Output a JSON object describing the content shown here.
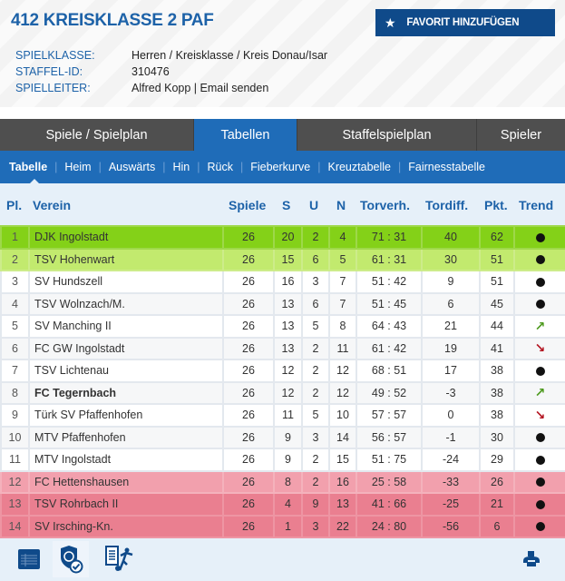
{
  "header": {
    "title": "412 KREISKLASSE 2 PAF",
    "favorite_button": "FAVORIT HINZUFÜGEN",
    "info": [
      {
        "label": "SPIELKLASSE:",
        "value": "Herren / Kreisklasse / Kreis Donau/Isar"
      },
      {
        "label": "STAFFEL-ID:",
        "value": "310476"
      },
      {
        "label": "SPIELLEITER:",
        "value": "Alfred Kopp",
        "link": "Email senden"
      }
    ]
  },
  "main_tabs": [
    {
      "label": "Spiele / Spielplan",
      "active": false
    },
    {
      "label": "Tabellen",
      "active": true
    },
    {
      "label": "Staffelspielplan",
      "active": false
    },
    {
      "label": "Spieler",
      "active": false
    }
  ],
  "sub_tabs": [
    {
      "label": "Tabelle",
      "active": true
    },
    {
      "label": "Heim"
    },
    {
      "label": "Auswärts"
    },
    {
      "label": "Hin"
    },
    {
      "label": "Rück"
    },
    {
      "label": "Fieberkurve"
    },
    {
      "label": "Kreuztabelle"
    },
    {
      "label": "Fairnesstabelle"
    }
  ],
  "table": {
    "columns": [
      "Pl.",
      "Verein",
      "Spiele",
      "S",
      "U",
      "N",
      "Torverh.",
      "Tordiff.",
      "Pkt.",
      "Trend"
    ],
    "rows": [
      {
        "pl": "1",
        "team": "DJK Ingolstadt",
        "spiele": "26",
        "s": "20",
        "u": "2",
        "n": "4",
        "tore": "71 : 31",
        "diff": "40",
        "pkt": "62",
        "trend": "same",
        "style": "promo1"
      },
      {
        "pl": "2",
        "team": "TSV Hohenwart",
        "spiele": "26",
        "s": "15",
        "u": "6",
        "n": "5",
        "tore": "61 : 31",
        "diff": "30",
        "pkt": "51",
        "trend": "same",
        "style": "promo2"
      },
      {
        "pl": "3",
        "team": "SV Hundszell",
        "spiele": "26",
        "s": "16",
        "u": "3",
        "n": "7",
        "tore": "51 : 42",
        "diff": "9",
        "pkt": "51",
        "trend": "same",
        "style": "white"
      },
      {
        "pl": "4",
        "team": "TSV Wolnzach/M.",
        "spiele": "26",
        "s": "13",
        "u": "6",
        "n": "7",
        "tore": "51 : 45",
        "diff": "6",
        "pkt": "45",
        "trend": "same",
        "style": "gray"
      },
      {
        "pl": "5",
        "team": "SV Manching II",
        "spiele": "26",
        "s": "13",
        "u": "5",
        "n": "8",
        "tore": "64 : 43",
        "diff": "21",
        "pkt": "44",
        "trend": "up",
        "style": "white"
      },
      {
        "pl": "6",
        "team": "FC GW Ingolstadt",
        "spiele": "26",
        "s": "13",
        "u": "2",
        "n": "11",
        "tore": "61 : 42",
        "diff": "19",
        "pkt": "41",
        "trend": "down",
        "style": "gray"
      },
      {
        "pl": "7",
        "team": "TSV Lichtenau",
        "spiele": "26",
        "s": "12",
        "u": "2",
        "n": "12",
        "tore": "68 : 51",
        "diff": "17",
        "pkt": "38",
        "trend": "same",
        "style": "white"
      },
      {
        "pl": "8",
        "team": "FC Tegernbach",
        "spiele": "26",
        "s": "12",
        "u": "2",
        "n": "12",
        "tore": "49 : 52",
        "diff": "-3",
        "pkt": "38",
        "trend": "up",
        "style": "gray",
        "bold": true
      },
      {
        "pl": "9",
        "team": "Türk SV Pfaffenhofen",
        "spiele": "26",
        "s": "11",
        "u": "5",
        "n": "10",
        "tore": "57 : 57",
        "diff": "0",
        "pkt": "38",
        "trend": "down",
        "style": "white"
      },
      {
        "pl": "10",
        "team": "MTV Pfaffenhofen",
        "spiele": "26",
        "s": "9",
        "u": "3",
        "n": "14",
        "tore": "56 : 57",
        "diff": "-1",
        "pkt": "30",
        "trend": "same",
        "style": "gray"
      },
      {
        "pl": "11",
        "team": "MTV Ingolstadt",
        "spiele": "26",
        "s": "9",
        "u": "2",
        "n": "15",
        "tore": "51 : 75",
        "diff": "-24",
        "pkt": "29",
        "trend": "same",
        "style": "white"
      },
      {
        "pl": "12",
        "team": "FC Hettenshausen",
        "spiele": "26",
        "s": "8",
        "u": "2",
        "n": "16",
        "tore": "25 : 58",
        "diff": "-33",
        "pkt": "26",
        "trend": "same",
        "style": "rel1"
      },
      {
        "pl": "13",
        "team": "TSV Rohrbach II",
        "spiele": "26",
        "s": "4",
        "u": "9",
        "n": "13",
        "tore": "41 : 66",
        "diff": "-25",
        "pkt": "21",
        "trend": "same",
        "style": "rel2"
      },
      {
        "pl": "14",
        "team": "SV Irsching-Kn.",
        "spiele": "26",
        "s": "1",
        "u": "3",
        "n": "22",
        "tore": "24 : 80",
        "diff": "-56",
        "pkt": "6",
        "trend": "same",
        "style": "rel2"
      }
    ]
  },
  "footer_icons": [
    "table-view-icon",
    "shield-check-icon",
    "report-player-icon",
    "print-icon"
  ],
  "colors": {
    "accent": "#1f6cb8",
    "title": "#1d62a8",
    "dark_tab": "#4f4f4f",
    "fav_button": "#0f4a8a",
    "promo1": "#84d118",
    "promo2": "#c2ea6e",
    "rel1": "#f2a0ad",
    "rel2": "#ea7f90",
    "trend_up": "#4d9a1e",
    "trend_down": "#b3121f"
  }
}
